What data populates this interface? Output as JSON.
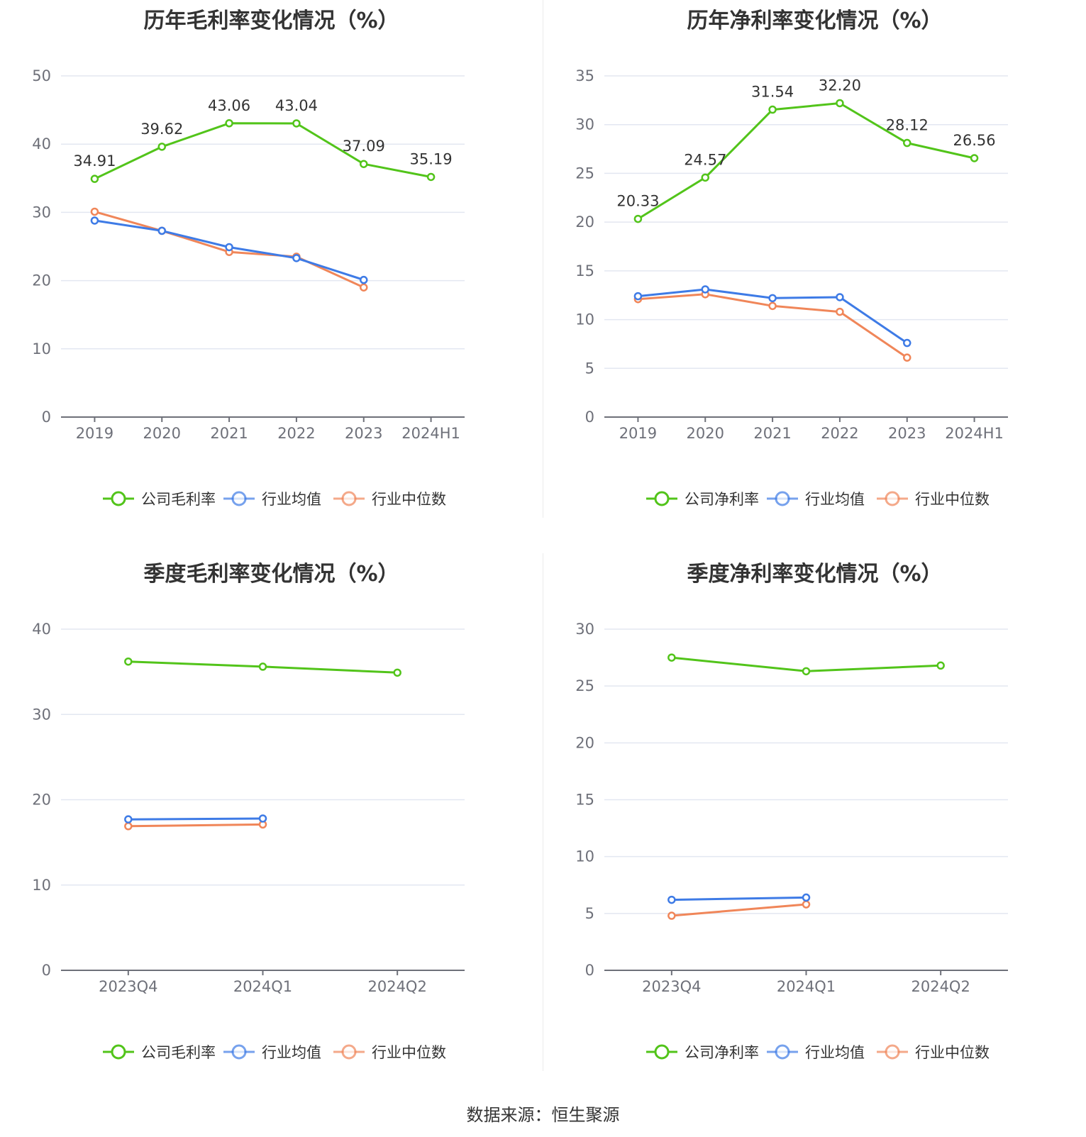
{
  "source": "数据来源：恒生聚源",
  "colors": {
    "company": "#52c41a",
    "avg": "#3e7be6",
    "median": "#f08659",
    "grid": "#e3e7f1",
    "axis": "#6e7079"
  },
  "chart_data": [
    {
      "type": "line",
      "title": "历年毛利率变化情况（%）",
      "categories": [
        "2019",
        "2020",
        "2021",
        "2022",
        "2023",
        "2024H1"
      ],
      "yticks": [
        "0",
        "10",
        "20",
        "30",
        "40",
        "50"
      ],
      "ylim": [
        0,
        50
      ],
      "grid": true,
      "legend_position": "bottom",
      "series": [
        {
          "name": "公司毛利率",
          "values": [
            34.91,
            39.62,
            43.06,
            43.04,
            37.09,
            35.19
          ],
          "labels": [
            "34.91",
            "39.62",
            "43.06",
            "43.04",
            "37.09",
            "35.19"
          ]
        },
        {
          "name": "行业均值",
          "values": [
            28.8,
            27.3,
            24.9,
            23.3,
            20.1,
            null
          ]
        },
        {
          "name": "行业中位数",
          "values": [
            30.1,
            27.3,
            24.2,
            23.5,
            19.0,
            null
          ]
        }
      ]
    },
    {
      "type": "line",
      "title": "历年净利率变化情况（%）",
      "categories": [
        "2019",
        "2020",
        "2021",
        "2022",
        "2023",
        "2024H1"
      ],
      "yticks": [
        "0",
        "5",
        "10",
        "15",
        "20",
        "25",
        "30",
        "35"
      ],
      "ylim": [
        0,
        35
      ],
      "grid": true,
      "legend_position": "bottom",
      "series": [
        {
          "name": "公司净利率",
          "values": [
            20.33,
            24.57,
            31.54,
            32.2,
            28.12,
            26.56
          ],
          "labels": [
            "20.33",
            "24.57",
            "31.54",
            "32.20",
            "28.12",
            "26.56"
          ]
        },
        {
          "name": "行业均值",
          "values": [
            12.4,
            13.1,
            12.2,
            12.3,
            7.6,
            null
          ]
        },
        {
          "name": "行业中位数",
          "values": [
            12.1,
            12.6,
            11.4,
            10.8,
            6.1,
            null
          ]
        }
      ]
    },
    {
      "type": "line",
      "title": "季度毛利率变化情况（%）",
      "categories": [
        "2023Q4",
        "2024Q1",
        "2024Q2"
      ],
      "yticks": [
        "0",
        "10",
        "20",
        "30",
        "40"
      ],
      "ylim": [
        0,
        40
      ],
      "grid": true,
      "legend_position": "bottom",
      "series": [
        {
          "name": "公司毛利率",
          "values": [
            36.2,
            35.6,
            34.9
          ]
        },
        {
          "name": "行业均值",
          "values": [
            17.7,
            17.8,
            null
          ]
        },
        {
          "name": "行业中位数",
          "values": [
            16.9,
            17.1,
            null
          ]
        }
      ]
    },
    {
      "type": "line",
      "title": "季度净利率变化情况（%）",
      "categories": [
        "2023Q4",
        "2024Q1",
        "2024Q2"
      ],
      "yticks": [
        "0",
        "5",
        "10",
        "15",
        "20",
        "25",
        "30"
      ],
      "ylim": [
        0,
        30
      ],
      "grid": true,
      "legend_position": "bottom",
      "series": [
        {
          "name": "公司净利率",
          "values": [
            27.5,
            26.3,
            26.8
          ]
        },
        {
          "name": "行业均值",
          "values": [
            6.2,
            6.4,
            null
          ]
        },
        {
          "name": "行业中位数",
          "values": [
            4.8,
            5.8,
            null
          ]
        }
      ]
    }
  ]
}
